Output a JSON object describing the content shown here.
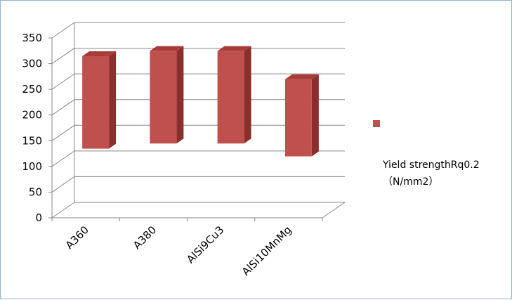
{
  "chart_data": {
    "type": "bar3d",
    "categories": [
      "A360",
      "A380",
      "AlSi9Cu3",
      "AlSi10MnMg"
    ],
    "series": [
      {
        "name": "Yield strengthRq0.2（N/mm2）",
        "color": "#c0504d",
        "starts": [
          140,
          150,
          150,
          125
        ],
        "values": [
          320,
          330,
          330,
          275
        ]
      }
    ],
    "ylim": [
      0,
      350
    ],
    "yticks": [
      0,
      50,
      100,
      150,
      200,
      250,
      300,
      350
    ],
    "grid": true
  }
}
